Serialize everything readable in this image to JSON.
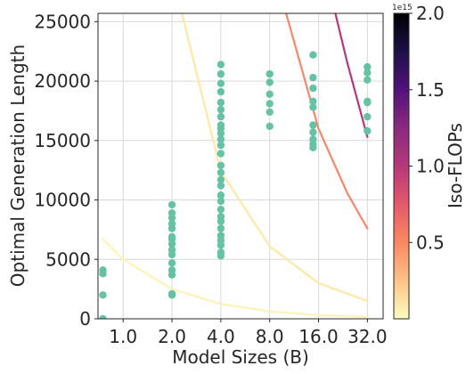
{
  "chart_data": {
    "type": "scatter",
    "xlabel": "Model Sizes (B)",
    "ylabel": "Optimal Generation Length",
    "x_scale": "log2",
    "xlim": [
      0.7,
      40
    ],
    "ylim": [
      0,
      25700
    ],
    "x_ticks": [
      1,
      2,
      4,
      8,
      16,
      32
    ],
    "x_tick_labels": [
      "1.0",
      "2.0",
      "4.0",
      "8.0",
      "16.0",
      "32.0"
    ],
    "y_ticks": [
      0,
      5000,
      10000,
      15000,
      20000,
      25000
    ],
    "y_tick_labels": [
      "0",
      "5000",
      "10000",
      "15000",
      "20000",
      "25000"
    ],
    "grid": true,
    "point_color": "#66c2a5",
    "points": [
      {
        "x": 0.75,
        "y": 0
      },
      {
        "x": 0.75,
        "y": 2000
      },
      {
        "x": 0.75,
        "y": 3800
      },
      {
        "x": 0.75,
        "y": 4100
      },
      {
        "x": 2,
        "y": 2000
      },
      {
        "x": 2,
        "y": 2100
      },
      {
        "x": 2,
        "y": 3700
      },
      {
        "x": 2,
        "y": 4100
      },
      {
        "x": 2,
        "y": 4700
      },
      {
        "x": 2,
        "y": 5400
      },
      {
        "x": 2,
        "y": 5800
      },
      {
        "x": 2,
        "y": 6300
      },
      {
        "x": 2,
        "y": 6700
      },
      {
        "x": 2,
        "y": 6900
      },
      {
        "x": 2,
        "y": 7600
      },
      {
        "x": 2,
        "y": 8000
      },
      {
        "x": 2,
        "y": 8500
      },
      {
        "x": 2,
        "y": 8900
      },
      {
        "x": 2,
        "y": 9600
      },
      {
        "x": 4,
        "y": 5300
      },
      {
        "x": 4,
        "y": 5600
      },
      {
        "x": 4,
        "y": 6200
      },
      {
        "x": 4,
        "y": 6600
      },
      {
        "x": 4,
        "y": 7000
      },
      {
        "x": 4,
        "y": 7600
      },
      {
        "x": 4,
        "y": 8200
      },
      {
        "x": 4,
        "y": 8600
      },
      {
        "x": 4,
        "y": 9200
      },
      {
        "x": 4,
        "y": 9900
      },
      {
        "x": 4,
        "y": 10400
      },
      {
        "x": 4,
        "y": 11200
      },
      {
        "x": 4,
        "y": 11700
      },
      {
        "x": 4,
        "y": 12300
      },
      {
        "x": 4,
        "y": 12900
      },
      {
        "x": 4,
        "y": 13900
      },
      {
        "x": 4,
        "y": 14600
      },
      {
        "x": 4,
        "y": 15100
      },
      {
        "x": 4,
        "y": 15600
      },
      {
        "x": 4,
        "y": 16000
      },
      {
        "x": 4,
        "y": 16300
      },
      {
        "x": 4,
        "y": 17000
      },
      {
        "x": 4,
        "y": 17600
      },
      {
        "x": 4,
        "y": 18200
      },
      {
        "x": 4,
        "y": 19100
      },
      {
        "x": 4,
        "y": 19800
      },
      {
        "x": 4,
        "y": 20600
      },
      {
        "x": 4,
        "y": 21400
      },
      {
        "x": 8,
        "y": 16200
      },
      {
        "x": 8,
        "y": 17400
      },
      {
        "x": 8,
        "y": 18100
      },
      {
        "x": 8,
        "y": 18900
      },
      {
        "x": 8,
        "y": 19900
      },
      {
        "x": 8,
        "y": 20600
      },
      {
        "x": 14.8,
        "y": 14400
      },
      {
        "x": 14.8,
        "y": 14700
      },
      {
        "x": 14.8,
        "y": 15100
      },
      {
        "x": 14.8,
        "y": 15700
      },
      {
        "x": 14.8,
        "y": 16300
      },
      {
        "x": 14.8,
        "y": 17800
      },
      {
        "x": 14.8,
        "y": 18300
      },
      {
        "x": 14.8,
        "y": 19400
      },
      {
        "x": 14.8,
        "y": 20300
      },
      {
        "x": 14.8,
        "y": 22200
      },
      {
        "x": 32,
        "y": 15800
      },
      {
        "x": 32,
        "y": 17000
      },
      {
        "x": 32,
        "y": 18200
      },
      {
        "x": 32,
        "y": 18300
      },
      {
        "x": 32,
        "y": 20100
      },
      {
        "x": 32,
        "y": 20700
      },
      {
        "x": 32,
        "y": 21200
      }
    ],
    "iso_flops_curves": [
      {
        "color": "#fdf3b6",
        "points": [
          [
            0.75,
            6700
          ],
          [
            1,
            5000
          ],
          [
            2,
            2500
          ],
          [
            4,
            1250
          ],
          [
            8,
            625
          ],
          [
            16,
            312
          ],
          [
            32,
            156
          ]
        ]
      },
      {
        "color": "#fde8a4",
        "points": [
          [
            2.3,
            25700
          ],
          [
            4,
            12400
          ],
          [
            8,
            6100
          ],
          [
            16,
            3000
          ],
          [
            32,
            1500
          ]
        ]
      },
      {
        "color": "#f8866b",
        "points": [
          [
            10.1,
            25700
          ],
          [
            16,
            16000
          ],
          [
            24,
            10600
          ],
          [
            32,
            7600
          ]
        ]
      },
      {
        "color": "#b6377a",
        "points": [
          [
            20.3,
            25700
          ],
          [
            24,
            21600
          ],
          [
            32,
            15300
          ]
        ]
      }
    ],
    "colorbar": {
      "label": "Iso-FLOPs",
      "exponent_label": "1e15",
      "min": 0,
      "max": 2.0,
      "ticks": [
        0.5,
        1.0,
        1.5,
        2.0
      ],
      "tick_labels": [
        "0.5",
        "1.0",
        "1.5",
        "2.0"
      ],
      "colormap": "magma_r",
      "stops": [
        "#fcfdbf",
        "#fec287",
        "#fb8861",
        "#e5596b",
        "#b73779",
        "#8c2981",
        "#51127c",
        "#1d1147",
        "#000004"
      ]
    }
  }
}
